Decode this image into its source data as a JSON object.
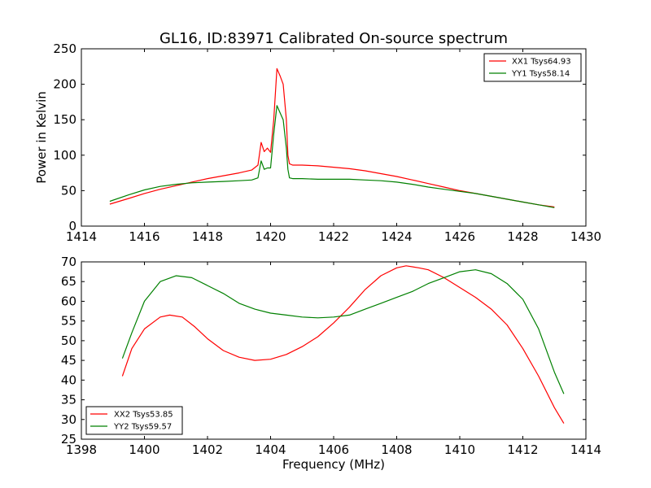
{
  "chart_data": [
    {
      "type": "line",
      "title": "GL16, ID:83971 Calibrated On-source spectrum",
      "xlabel": "",
      "ylabel": "Power in Kelvin",
      "xlim": [
        1414,
        1430
      ],
      "ylim": [
        0,
        250
      ],
      "xticks": [
        1414,
        1416,
        1418,
        1420,
        1422,
        1424,
        1426,
        1428,
        1430
      ],
      "yticks": [
        0,
        50,
        100,
        150,
        200,
        250
      ],
      "legend_position": "top-right",
      "grid": false,
      "series": [
        {
          "name": "XX1 Tsys64.93",
          "color": "#ff0000",
          "x": [
            1414.9,
            1415.5,
            1416,
            1416.5,
            1417,
            1417.5,
            1418,
            1418.5,
            1419,
            1419.4,
            1419.6,
            1419.7,
            1419.8,
            1419.9,
            1420.0,
            1420.1,
            1420.2,
            1420.3,
            1420.4,
            1420.5,
            1420.55,
            1420.6,
            1420.7,
            1421,
            1421.5,
            1422,
            1422.5,
            1423,
            1423.5,
            1424,
            1424.5,
            1425,
            1425.5,
            1426,
            1426.5,
            1427,
            1427.5,
            1428,
            1428.5,
            1429
          ],
          "y": [
            31,
            39,
            46,
            52,
            57,
            62,
            67,
            71,
            75,
            79,
            86,
            118,
            105,
            110,
            104,
            150,
            222,
            212,
            200,
            150,
            100,
            88,
            86,
            86,
            85,
            83,
            81,
            78,
            74,
            70,
            65,
            60,
            55,
            50,
            46,
            42,
            38,
            34,
            30,
            27
          ]
        },
        {
          "name": "YY1 Tsys58.14",
          "color": "#008000",
          "x": [
            1414.9,
            1415.5,
            1416,
            1416.5,
            1417,
            1417.5,
            1418,
            1418.5,
            1419,
            1419.4,
            1419.6,
            1419.7,
            1419.8,
            1419.9,
            1420.0,
            1420.1,
            1420.2,
            1420.3,
            1420.4,
            1420.5,
            1420.55,
            1420.6,
            1420.7,
            1421,
            1421.5,
            1422,
            1422.5,
            1423,
            1423.5,
            1424,
            1424.5,
            1425,
            1425.5,
            1426,
            1426.5,
            1427,
            1427.5,
            1428,
            1428.5,
            1429
          ],
          "y": [
            35,
            44,
            51,
            56,
            59,
            61,
            62,
            63,
            64,
            65,
            68,
            92,
            80,
            82,
            82,
            130,
            170,
            160,
            150,
            110,
            80,
            68,
            67,
            67,
            66,
            66,
            66,
            65,
            64,
            62,
            59,
            55,
            52,
            49,
            46,
            42,
            38,
            34,
            30,
            26
          ]
        }
      ]
    },
    {
      "type": "line",
      "title": "",
      "xlabel": "Frequency (MHz)",
      "ylabel": "",
      "xlim": [
        1398,
        1414
      ],
      "ylim": [
        25,
        70
      ],
      "xticks": [
        1398,
        1400,
        1402,
        1404,
        1406,
        1408,
        1410,
        1412,
        1414
      ],
      "yticks": [
        25,
        30,
        35,
        40,
        45,
        50,
        55,
        60,
        65,
        70
      ],
      "legend_position": "bottom-left",
      "grid": false,
      "series": [
        {
          "name": "XX2 Tsys53.85",
          "color": "#ff0000",
          "x": [
            1399.3,
            1399.6,
            1400.0,
            1400.5,
            1400.8,
            1401.2,
            1401.6,
            1402.0,
            1402.5,
            1403.0,
            1403.5,
            1404.0,
            1404.5,
            1405.0,
            1405.5,
            1406.0,
            1406.5,
            1407.0,
            1407.5,
            1408.0,
            1408.3,
            1408.7,
            1409.0,
            1409.5,
            1410.0,
            1410.5,
            1411.0,
            1411.5,
            1412.0,
            1412.5,
            1413.0,
            1413.3
          ],
          "y": [
            41,
            48,
            53,
            56,
            56.5,
            56,
            53.5,
            50.5,
            47.5,
            45.8,
            45,
            45.3,
            46.5,
            48.5,
            51,
            54.5,
            58.5,
            63,
            66.5,
            68.5,
            69,
            68.5,
            68,
            66,
            63.5,
            61,
            58,
            54,
            48,
            41,
            33,
            29
          ]
        },
        {
          "name": "YY2 Tsys59.57",
          "color": "#008000",
          "x": [
            1399.3,
            1399.6,
            1400.0,
            1400.5,
            1401.0,
            1401.5,
            1402.0,
            1402.5,
            1403.0,
            1403.5,
            1404.0,
            1404.5,
            1405.0,
            1405.5,
            1406.0,
            1406.5,
            1407.0,
            1407.5,
            1408.0,
            1408.5,
            1409.0,
            1409.5,
            1410.0,
            1410.5,
            1411.0,
            1411.5,
            1412.0,
            1412.5,
            1413.0,
            1413.3
          ],
          "y": [
            45.5,
            52,
            60,
            65,
            66.5,
            66,
            64,
            62,
            59.5,
            58,
            57,
            56.5,
            56,
            55.8,
            56,
            56.5,
            58,
            59.5,
            61,
            62.5,
            64.5,
            66,
            67.5,
            68,
            67,
            64.5,
            60.5,
            53,
            42,
            36.5
          ]
        }
      ]
    }
  ]
}
